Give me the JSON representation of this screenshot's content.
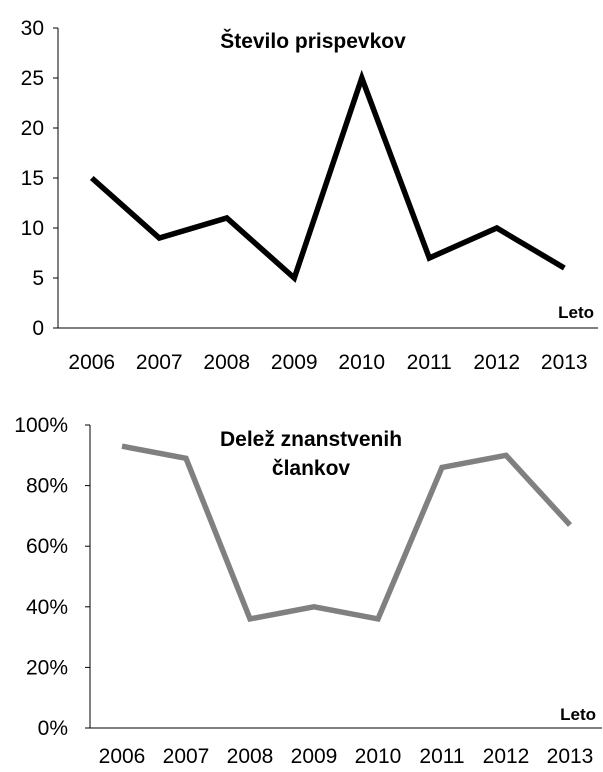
{
  "chart_data": [
    {
      "type": "line",
      "title": "Število prispevkov",
      "xlabel": "Leto",
      "ylabel": "",
      "categories": [
        "2006",
        "2007",
        "2008",
        "2009",
        "2010",
        "2011",
        "2012",
        "2013"
      ],
      "series": [
        {
          "values": [
            15,
            9,
            11,
            5,
            25,
            7,
            10,
            6
          ],
          "color": "#000000"
        }
      ],
      "ylim": [
        0,
        30
      ],
      "yticks": [
        0,
        5,
        10,
        15,
        20,
        25,
        30
      ],
      "ytick_labels": [
        "0",
        "5",
        "10",
        "15",
        "20",
        "25",
        "30"
      ],
      "grid": false,
      "legend": "none"
    },
    {
      "type": "line",
      "title": "Delež znanstvenih člankov",
      "xlabel": "Leto",
      "ylabel": "",
      "categories": [
        "2006",
        "2007",
        "2008",
        "2009",
        "2010",
        "2011",
        "2012",
        "2013"
      ],
      "series": [
        {
          "values": [
            0.93,
            0.89,
            0.36,
            0.4,
            0.36,
            0.86,
            0.9,
            0.67
          ],
          "color": "#808080"
        }
      ],
      "ylim": [
        0,
        1
      ],
      "yticks": [
        0,
        0.2,
        0.4,
        0.6,
        0.8,
        1.0
      ],
      "ytick_labels": [
        "0%",
        "20%",
        "40%",
        "60%",
        "80%",
        "100%"
      ],
      "grid": false,
      "legend": "none"
    }
  ]
}
